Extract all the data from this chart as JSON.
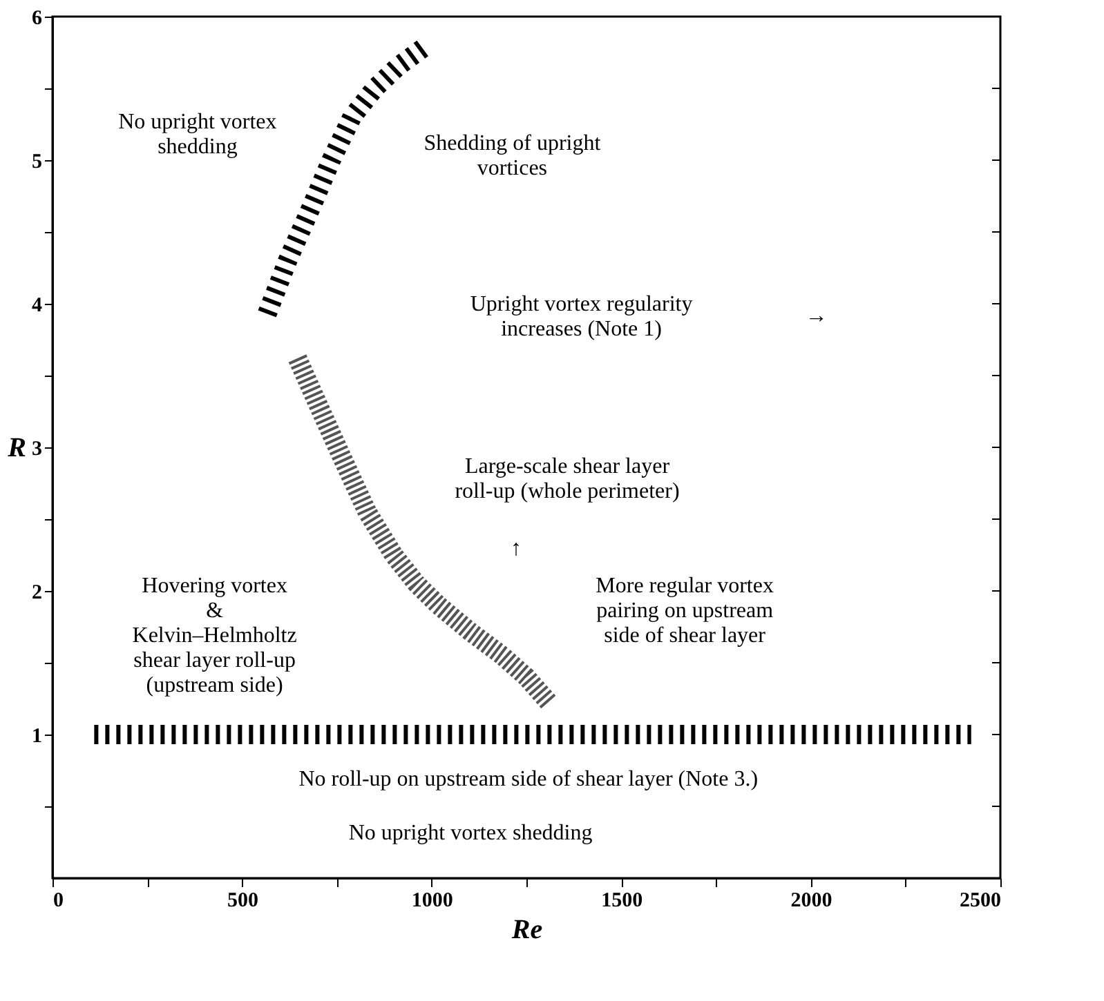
{
  "chart_data": {
    "type": "line",
    "xlabel": "Re",
    "ylabel": "R",
    "xlim": [
      0,
      2500
    ],
    "ylim": [
      0,
      6
    ],
    "xticks": [
      0,
      {
        "value": 250,
        "label": null
      },
      500,
      {
        "value": 750,
        "label": null
      },
      1000,
      {
        "value": 1250,
        "label": null
      },
      1500,
      {
        "value": 1750,
        "label": null
      },
      2000,
      {
        "value": 2250,
        "label": null
      },
      2500
    ],
    "yticks": [
      {
        "value": 0.5,
        "label": null
      },
      1,
      {
        "value": 1.5,
        "label": null
      },
      2,
      {
        "value": 2.5,
        "label": null
      },
      3,
      {
        "value": 3.5,
        "label": null
      },
      4,
      {
        "value": 4.5,
        "label": null
      },
      5,
      {
        "value": 5.5,
        "label": null
      },
      6
    ],
    "grid": false,
    "series": [
      {
        "color": "#000000",
        "line_style": "dashed",
        "x": [
          566,
          620,
          682,
          735,
          790,
          850,
          910,
          982
        ],
        "values": [
          3.93,
          4.3,
          4.67,
          5.0,
          5.3,
          5.5,
          5.65,
          5.79
        ]
      },
      {
        "color": "#555555",
        "line_style": "dotted",
        "x": [
          646,
          700,
          760,
          830,
          900,
          960,
          1018,
          1100,
          1186,
          1250,
          1310
        ],
        "values": [
          3.62,
          3.3,
          2.95,
          2.55,
          2.25,
          2.05,
          1.9,
          1.72,
          1.55,
          1.4,
          1.22
        ]
      },
      {
        "color": "#000000",
        "line_style": "dashed",
        "x": [
          110,
          2423
        ],
        "values": [
          1.0,
          1.0
        ]
      }
    ],
    "annotations": [
      "No upright vortex\nshedding",
      "Shedding of upright\nvortices",
      "Upright vortex regularity\nincreases (Note 1)",
      "→",
      "Large-scale shear layer\nroll-up (whole perimeter)",
      "Hovering vortex\n&\nKelvin–Helmholtz\nshear layer roll-up\n(upstream side)",
      "↑",
      "More regular vortex\npairing on upstream\nside of shear layer",
      "No roll-up on upstream side of shear layer (Note 3.)",
      "No upright vortex shedding"
    ]
  }
}
